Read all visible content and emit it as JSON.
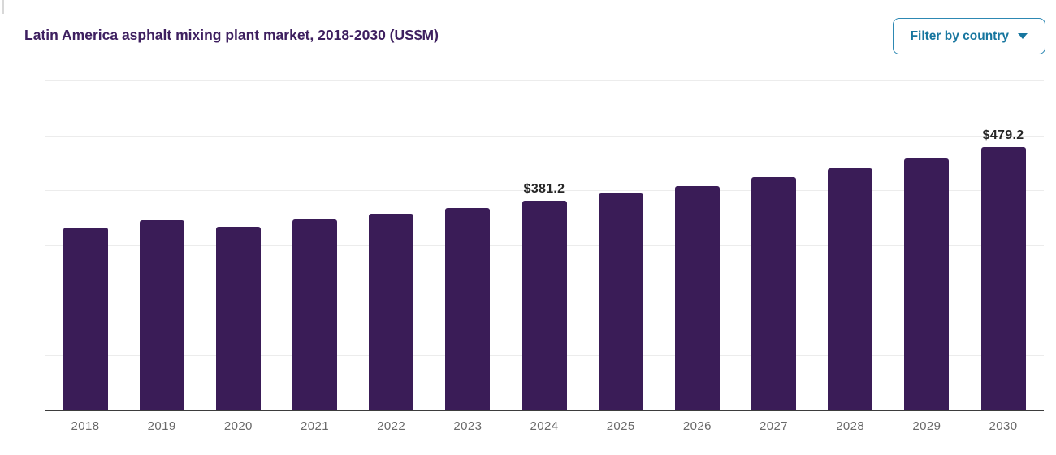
{
  "header": {
    "title": "Latin America asphalt mixing plant market, 2018-2030 (US$M)",
    "filter_button": {
      "label": "Filter by country",
      "icon": "caret-down-icon"
    }
  },
  "colors": {
    "background": "#ffffff",
    "title_text": "#3e2060",
    "bar_fill": "#3a1c57",
    "button_text": "#17769f",
    "button_border": "#2d88b3",
    "gridline": "#ececec",
    "axis_line": "#3d3d3d",
    "tick_label": "#696969",
    "value_label": "#262626"
  },
  "chart_data": {
    "type": "bar",
    "title": "Latin America asphalt mixing plant market, 2018-2030 (US$M)",
    "categories": [
      "2018",
      "2019",
      "2020",
      "2021",
      "2022",
      "2023",
      "2024",
      "2025",
      "2026",
      "2027",
      "2028",
      "2029",
      "2030"
    ],
    "values": [
      332.6,
      345.7,
      334.4,
      347.2,
      357.1,
      367.9,
      381.2,
      394.3,
      408.0,
      424.2,
      440.5,
      458.3,
      479.2
    ],
    "value_labels": {
      "2024": "$381.2",
      "2030": "$479.2"
    },
    "value_prefix": "$",
    "xlabel": "",
    "ylabel": "",
    "ylim": [
      0,
      600
    ],
    "grid_step": 100,
    "grid": true,
    "y_tick_labels_visible": false,
    "legend": false,
    "bar_color": "#3a1c57"
  }
}
